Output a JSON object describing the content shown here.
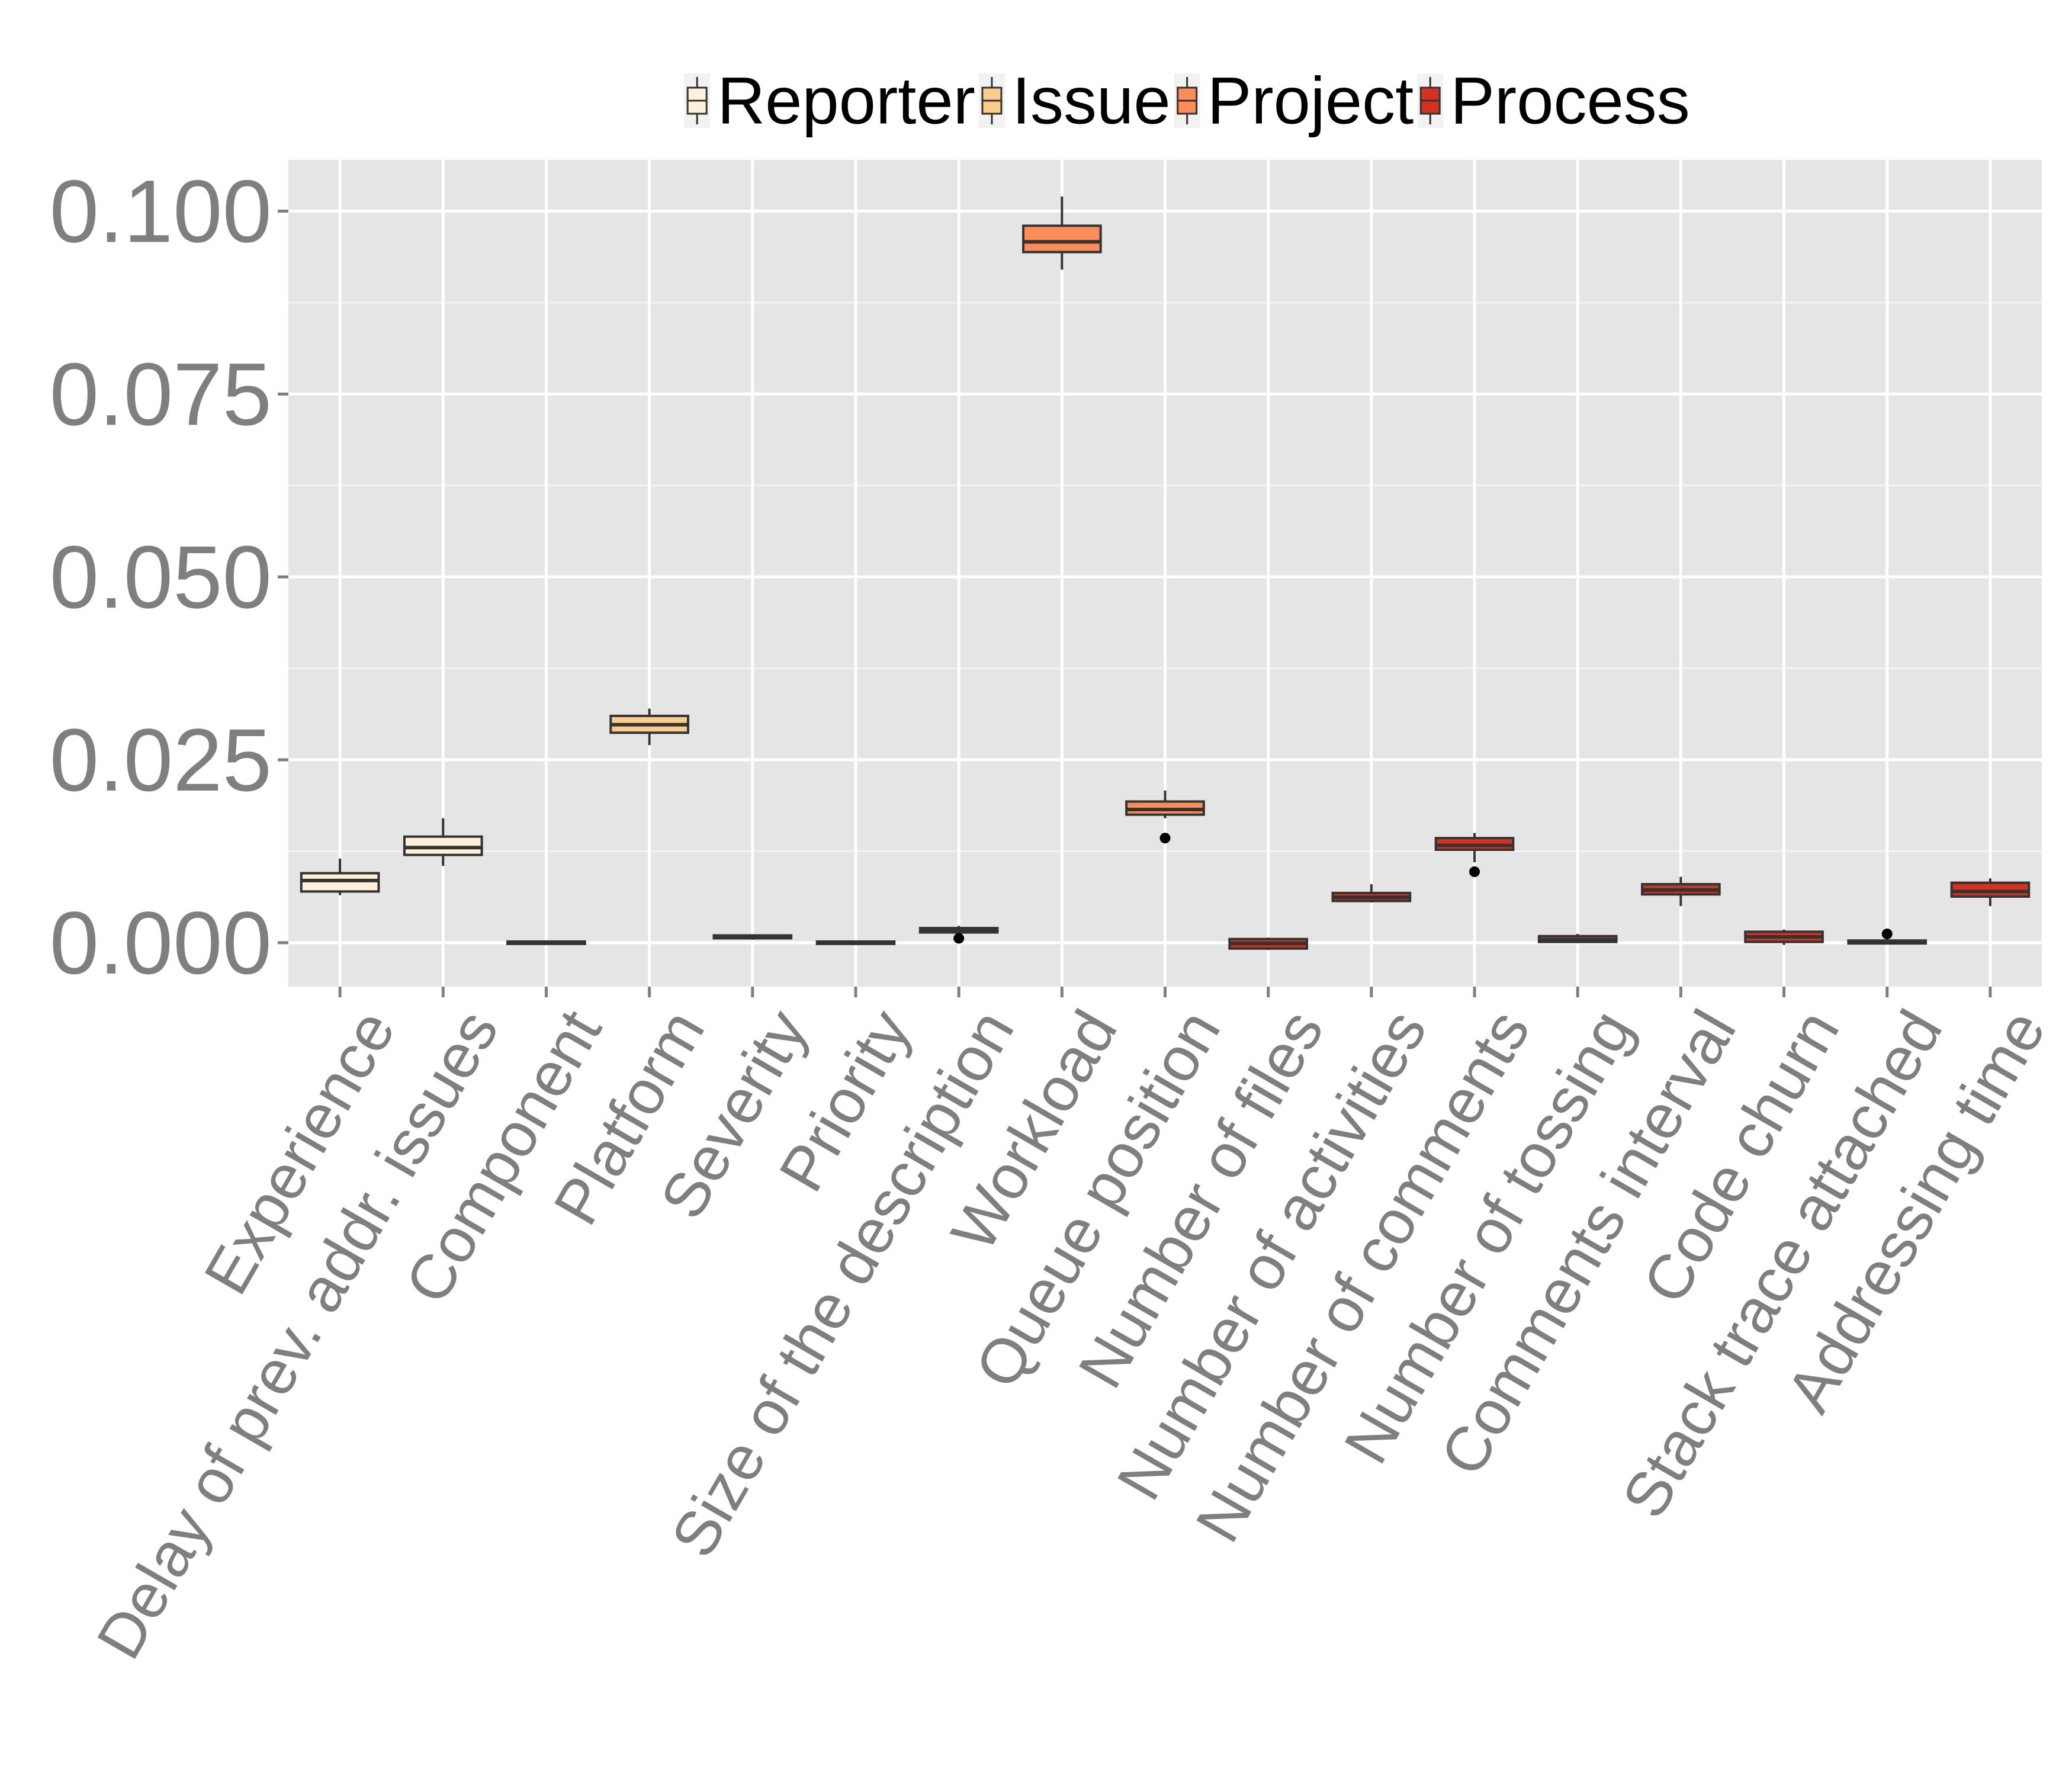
{
  "chart_data": {
    "type": "boxplot",
    "title": "",
    "xlabel": "",
    "ylabel": "",
    "ylim": [
      -0.006,
      0.107
    ],
    "yticks": [
      "0.000",
      "0.025",
      "0.050",
      "0.075",
      "0.100"
    ],
    "ytick_values": [
      0.0,
      0.025,
      0.05,
      0.075,
      0.1
    ],
    "grid": true,
    "legend_position": "top",
    "legend": [
      {
        "name": "Reporter",
        "color": "#fef0d9"
      },
      {
        "name": "Issue",
        "color": "#fdcc8a"
      },
      {
        "name": "Project",
        "color": "#fc8d59"
      },
      {
        "name": "Process",
        "color": "#d7301f"
      }
    ],
    "categories": [
      "Experience",
      "Delay of prev. addr. issues",
      "Component",
      "Platform",
      "Severity",
      "Priority",
      "Size of the description",
      "Workload",
      "Queue position",
      "Number of files",
      "Number of activities",
      "Number of comments",
      "Number of tossing",
      "Comments interval",
      "Code churn",
      "Stack trace attached",
      "Addressing time"
    ],
    "boxes": [
      {
        "group": "Reporter",
        "min": 0.0065,
        "q1": 0.007,
        "median": 0.0085,
        "q3": 0.0095,
        "max": 0.0115,
        "outliers": []
      },
      {
        "group": "Reporter",
        "min": 0.0105,
        "q1": 0.012,
        "median": 0.013,
        "q3": 0.0145,
        "max": 0.017,
        "outliers": []
      },
      {
        "group": "Issue",
        "min": 0.0,
        "q1": 0.0,
        "median": 0.0,
        "q3": 0.0,
        "max": 0.0,
        "outliers": []
      },
      {
        "group": "Issue",
        "min": 0.027,
        "q1": 0.0287,
        "median": 0.0298,
        "q3": 0.031,
        "max": 0.032,
        "outliers": []
      },
      {
        "group": "Issue",
        "min": 0.0004,
        "q1": 0.0006,
        "median": 0.0008,
        "q3": 0.001,
        "max": 0.0011,
        "outliers": []
      },
      {
        "group": "Issue",
        "min": 0.0,
        "q1": 0.0,
        "median": 0.0,
        "q3": 0.0,
        "max": 0.0,
        "outliers": []
      },
      {
        "group": "Issue",
        "min": 0.0013,
        "q1": 0.0014,
        "median": 0.0017,
        "q3": 0.002,
        "max": 0.0023,
        "outliers": [
          0.0006
        ]
      },
      {
        "group": "Project",
        "min": 0.092,
        "q1": 0.0944,
        "median": 0.0958,
        "q3": 0.098,
        "max": 0.102,
        "outliers": []
      },
      {
        "group": "Project",
        "min": 0.017,
        "q1": 0.0175,
        "median": 0.0182,
        "q3": 0.0193,
        "max": 0.0208,
        "outliers": [
          0.0143
        ]
      },
      {
        "group": "Process",
        "min": -0.001,
        "q1": -0.0008,
        "median": -0.0001,
        "q3": 0.0005,
        "max": 0.0007,
        "outliers": []
      },
      {
        "group": "Process",
        "min": 0.0055,
        "q1": 0.0057,
        "median": 0.0062,
        "q3": 0.0068,
        "max": 0.008,
        "outliers": []
      },
      {
        "group": "Process",
        "min": 0.011,
        "q1": 0.0127,
        "median": 0.0133,
        "q3": 0.0143,
        "max": 0.015,
        "outliers": [
          0.0097
        ]
      },
      {
        "group": "Process",
        "min": 0.0,
        "q1": 0.0001,
        "median": 0.0004,
        "q3": 0.0009,
        "max": 0.0012,
        "outliers": []
      },
      {
        "group": "Process",
        "min": 0.005,
        "q1": 0.0066,
        "median": 0.0072,
        "q3": 0.008,
        "max": 0.009,
        "outliers": []
      },
      {
        "group": "Process",
        "min": -0.0003,
        "q1": 0.0001,
        "median": 0.0008,
        "q3": 0.0015,
        "max": 0.0018,
        "outliers": []
      },
      {
        "group": "Process",
        "min": -0.0002,
        "q1": -0.0001,
        "median": 0.0001,
        "q3": 0.0003,
        "max": 0.0005,
        "outliers": [
          0.0012
        ]
      },
      {
        "group": "Process",
        "min": 0.005,
        "q1": 0.0063,
        "median": 0.007,
        "q3": 0.0082,
        "max": 0.0088,
        "outliers": []
      }
    ]
  }
}
